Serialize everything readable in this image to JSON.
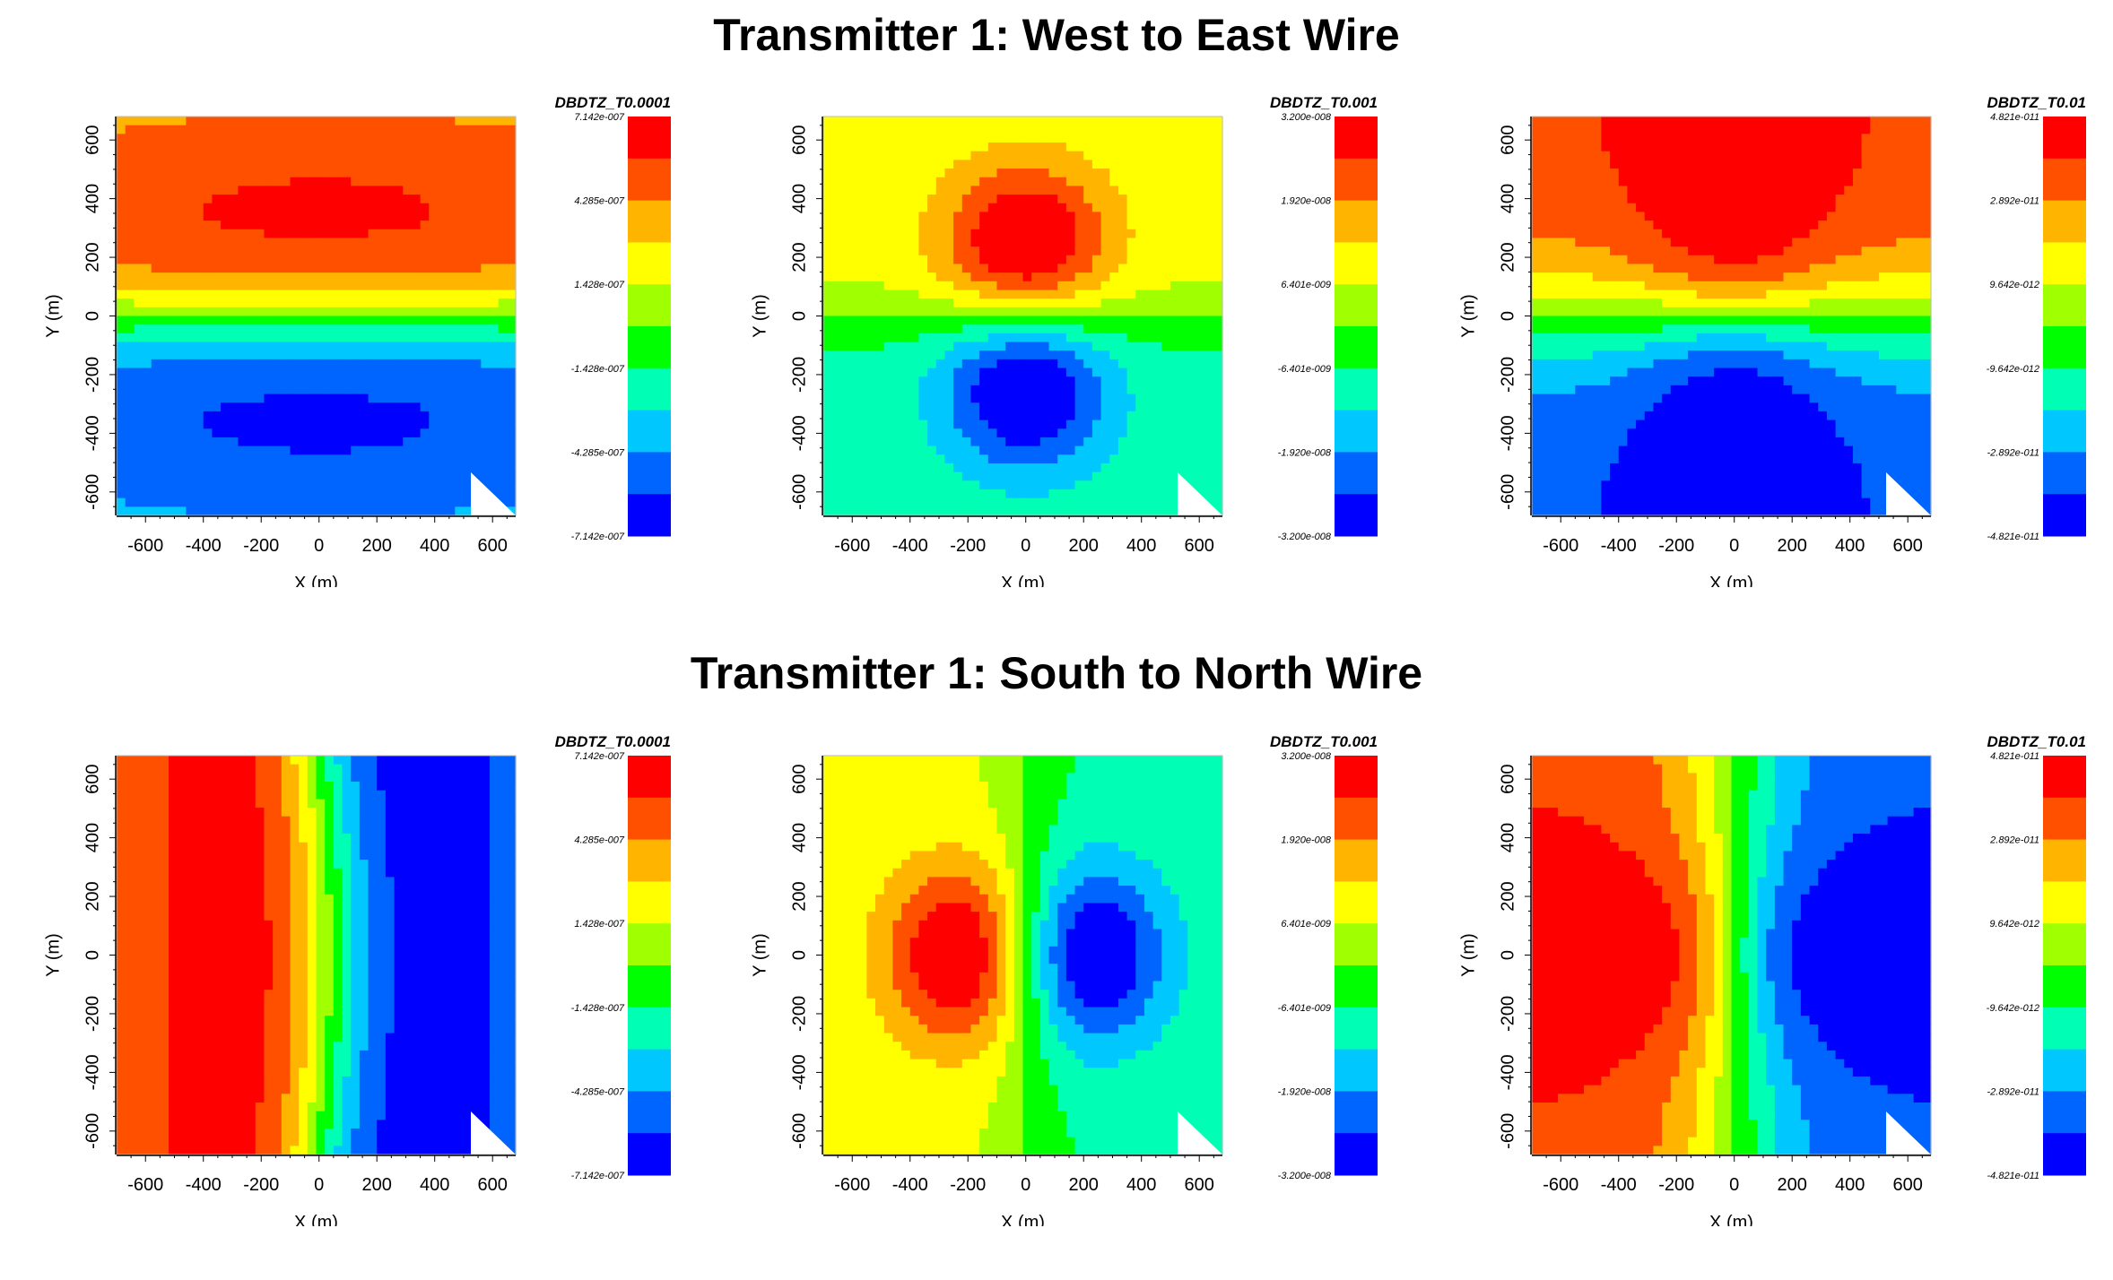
{
  "sections": [
    {
      "title": "Transmitter 1: West to East Wire"
    },
    {
      "title": "Transmitter 1: South to North Wire"
    }
  ],
  "colormap": [
    "#0000ff",
    "#0064ff",
    "#00c8ff",
    "#00ffb4",
    "#00ff00",
    "#a0ff00",
    "#ffff00",
    "#ffb400",
    "#ff5000",
    "#ff0000"
  ],
  "chart_data": [
    {
      "type": "heatmap",
      "row": 0,
      "col": 0,
      "field": "ew_late",
      "title": "DBDTZ_T0.0001",
      "xlabel": "X (m)",
      "ylabel": "Y (m)",
      "xlim": [
        -700,
        680
      ],
      "ylim": [
        -680,
        680
      ],
      "xticks": [
        "-600",
        "-400",
        "-200",
        "0",
        "200",
        "400",
        "600"
      ],
      "yticks": [
        "-600",
        "-400",
        "-200",
        "0",
        "200",
        "400",
        "600"
      ],
      "colorbar": [
        "7.142e-007",
        "4.285e-007",
        "1.428e-007",
        "-1.428e-007",
        "-4.285e-007",
        "-7.142e-007"
      ]
    },
    {
      "type": "heatmap",
      "row": 0,
      "col": 1,
      "field": "ew_mid",
      "title": "DBDTZ_T0.001",
      "xlabel": "X (m)",
      "ylabel": "Y (m)",
      "xlim": [
        -700,
        680
      ],
      "ylim": [
        -680,
        680
      ],
      "xticks": [
        "-600",
        "-400",
        "-200",
        "0",
        "200",
        "400",
        "600"
      ],
      "yticks": [
        "-600",
        "-400",
        "-200",
        "0",
        "200",
        "400",
        "600"
      ],
      "colorbar": [
        "3.200e-008",
        "1.920e-008",
        "6.401e-009",
        "-6.401e-009",
        "-1.920e-008",
        "-3.200e-008"
      ]
    },
    {
      "type": "heatmap",
      "row": 0,
      "col": 2,
      "field": "ew_early",
      "title": "DBDTZ_T0.01",
      "xlabel": "X (m)",
      "ylabel": "Y (m)",
      "xlim": [
        -700,
        680
      ],
      "ylim": [
        -680,
        680
      ],
      "xticks": [
        "-600",
        "-400",
        "-200",
        "0",
        "200",
        "400",
        "600"
      ],
      "yticks": [
        "-600",
        "-400",
        "-200",
        "0",
        "200",
        "400",
        "600"
      ],
      "colorbar": [
        "4.821e-011",
        "2.892e-011",
        "9.642e-012",
        "-9.642e-012",
        "-2.892e-011",
        "-4.821e-011"
      ]
    },
    {
      "type": "heatmap",
      "row": 1,
      "col": 0,
      "field": "sn_late",
      "title": "DBDTZ_T0.0001",
      "xlabel": "X (m)",
      "ylabel": "Y (m)",
      "xlim": [
        -700,
        680
      ],
      "ylim": [
        -680,
        680
      ],
      "xticks": [
        "-600",
        "-400",
        "-200",
        "0",
        "200",
        "400",
        "600"
      ],
      "yticks": [
        "-600",
        "-400",
        "-200",
        "0",
        "200",
        "400",
        "600"
      ],
      "colorbar": [
        "7.142e-007",
        "4.285e-007",
        "1.428e-007",
        "-1.428e-007",
        "-4.285e-007",
        "-7.142e-007"
      ]
    },
    {
      "type": "heatmap",
      "row": 1,
      "col": 1,
      "field": "sn_mid",
      "title": "DBDTZ_T0.001",
      "xlabel": "X (m)",
      "ylabel": "Y (m)",
      "xlim": [
        -700,
        680
      ],
      "ylim": [
        -680,
        680
      ],
      "xticks": [
        "-600",
        "-400",
        "-200",
        "0",
        "200",
        "400",
        "600"
      ],
      "yticks": [
        "-600",
        "-400",
        "-200",
        "0",
        "200",
        "400",
        "600"
      ],
      "colorbar": [
        "3.200e-008",
        "1.920e-008",
        "6.401e-009",
        "-6.401e-009",
        "-1.920e-008",
        "-3.200e-008"
      ]
    },
    {
      "type": "heatmap",
      "row": 1,
      "col": 2,
      "field": "sn_early",
      "title": "DBDTZ_T0.01",
      "xlabel": "X (m)",
      "ylabel": "Y (m)",
      "xlim": [
        -700,
        680
      ],
      "ylim": [
        -680,
        680
      ],
      "xticks": [
        "-600",
        "-400",
        "-200",
        "0",
        "200",
        "400",
        "600"
      ],
      "yticks": [
        "-600",
        "-400",
        "-200",
        "0",
        "200",
        "400",
        "600"
      ],
      "colorbar": [
        "4.821e-011",
        "2.892e-011",
        "9.642e-012",
        "-9.642e-012",
        "-2.892e-011",
        "-4.821e-011"
      ]
    }
  ]
}
